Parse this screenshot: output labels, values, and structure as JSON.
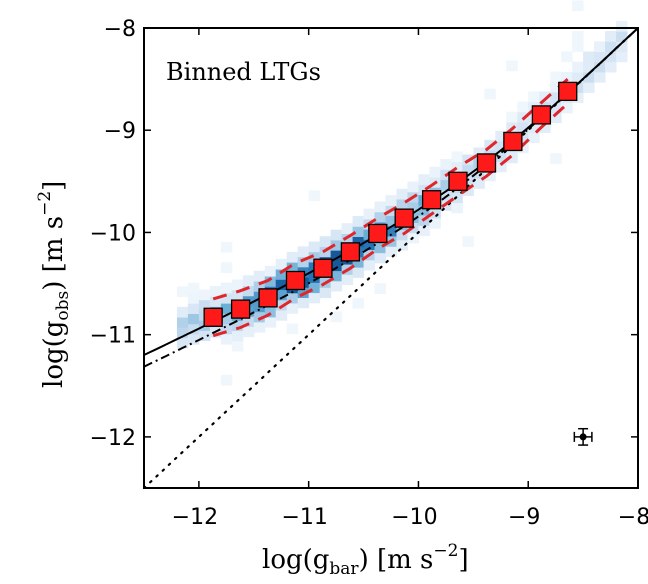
{
  "chart_data": {
    "type": "scatter",
    "annotation": "Binned LTGs",
    "xlabel": {
      "main": "log(g",
      "sub": "bar",
      "rest": ") [m s",
      "sup": "−2",
      "end": "]"
    },
    "ylabel": {
      "main": "log(g",
      "sub": "obs",
      "rest": ") [m s",
      "sup": "−2",
      "end": "]"
    },
    "xlim": [
      -12.5,
      -8
    ],
    "ylim": [
      -12.5,
      -8
    ],
    "x_ticks": [
      "−12",
      "−11",
      "−10",
      "−9",
      "−8"
    ],
    "x_tick_values": [
      -12,
      -11,
      -10,
      -9,
      -8
    ],
    "y_ticks": [
      "−8",
      "−9",
      "−10",
      "−11",
      "−12"
    ],
    "y_tick_values": [
      -8,
      -9,
      -10,
      -11,
      -12
    ],
    "grid": false,
    "binned_points": {
      "marker": "square",
      "color": "#ff1a1a",
      "x": [
        -11.87,
        -11.62,
        -11.37,
        -11.12,
        -10.87,
        -10.62,
        -10.37,
        -10.13,
        -9.88,
        -9.64,
        -9.38,
        -9.14,
        -8.88,
        -8.64
      ],
      "y": [
        -10.83,
        -10.75,
        -10.64,
        -10.47,
        -10.35,
        -10.19,
        -10.01,
        -9.86,
        -9.68,
        -9.5,
        -9.32,
        -9.11,
        -8.85,
        -8.62
      ],
      "scatter_band": [
        0.18,
        0.18,
        0.17,
        0.17,
        0.16,
        0.16,
        0.15,
        0.15,
        0.14,
        0.14,
        0.13,
        0.13,
        0.12,
        0.12
      ]
    },
    "band_color": "#e0262b",
    "lines": [
      {
        "style": "solid",
        "relation": "RAR fit",
        "g_dagger": 1.2e-10
      },
      {
        "style": "dashdot",
        "relation": "RAR fit",
        "g_dagger": 7e-11
      },
      {
        "style": "dotted",
        "relation": "1:1"
      }
    ],
    "density_colormap": "Blues",
    "typical_error": {
      "x": -8.5,
      "y": -12.0,
      "xerr": 0.08,
      "yerr": 0.08
    }
  }
}
